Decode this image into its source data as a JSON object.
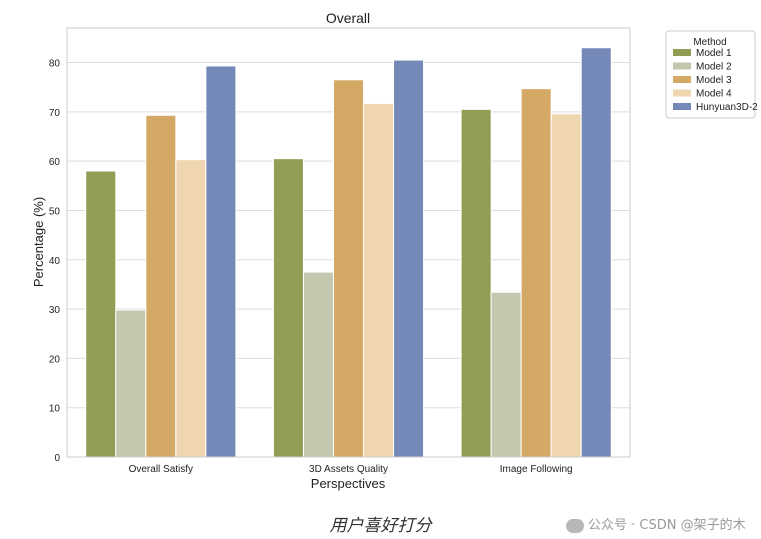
{
  "chart_data": {
    "type": "bar",
    "title": "Overall",
    "xlabel": "Perspectives",
    "ylabel": "Percentage (%)",
    "ylim": [
      0,
      87
    ],
    "yticks": [
      0,
      10,
      20,
      30,
      40,
      50,
      60,
      70,
      80
    ],
    "grid": true,
    "legend_title": "Method",
    "legend_position": "outside-top-right",
    "categories": [
      "Overall Satisfy",
      "3D Assets Quality",
      "Image Following"
    ],
    "series": [
      {
        "name": "Model 1",
        "color": "#8f9e52",
        "values": [
          58,
          60.5,
          70.5
        ]
      },
      {
        "name": "Model 2",
        "color": "#c4c7ad",
        "values": [
          29.8,
          37.5,
          33.4
        ]
      },
      {
        "name": "Model 3",
        "color": "#d4a865",
        "values": [
          69.3,
          76.5,
          74.7
        ]
      },
      {
        "name": "Model 4",
        "color": "#efd5b0",
        "values": [
          60.3,
          71.7,
          69.6
        ]
      },
      {
        "name": "Hunyuan3D-2",
        "color": "#7589b8",
        "values": [
          79.3,
          80.5,
          83
        ]
      }
    ]
  },
  "caption": "用户喜好打分",
  "watermark": "公众号 · CSDN @架子的木"
}
